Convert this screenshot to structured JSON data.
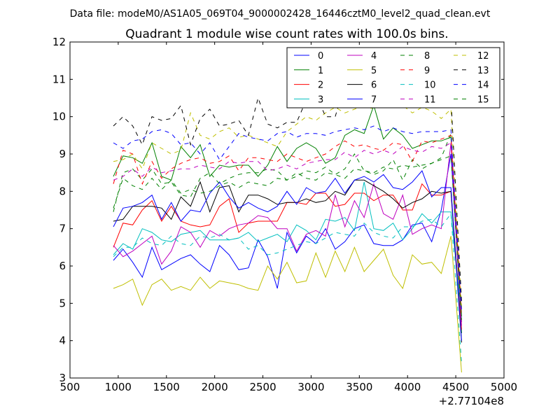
{
  "suptitle": "Data file: modeM0/AS1A05_069T04_9000002428_16446cztM0_level2_quad_clean.evt",
  "chart_data": {
    "type": "line",
    "title": "Quadrant 1 module wise count rates with 100.0s bins.",
    "xlabel": "",
    "ylabel": "",
    "x_offset_label": "+2.77104e8",
    "xlim": [
      500,
      5000
    ],
    "ylim": [
      3,
      12
    ],
    "xticks": [
      500,
      1000,
      1500,
      2000,
      2500,
      3000,
      3500,
      4000,
      4500,
      5000
    ],
    "yticks": [
      3,
      4,
      5,
      6,
      7,
      8,
      9,
      10,
      11,
      12
    ],
    "x": [
      950,
      1050,
      1150,
      1250,
      1350,
      1450,
      1550,
      1650,
      1750,
      1850,
      1950,
      2050,
      2150,
      2250,
      2350,
      2450,
      2550,
      2650,
      2750,
      2850,
      2950,
      3050,
      3150,
      3250,
      3350,
      3450,
      3550,
      3650,
      3750,
      3850,
      3950,
      4050,
      4150,
      4250,
      4350,
      4450,
      4560
    ],
    "legend": {
      "placement": "top-right",
      "columns": 4
    },
    "series": [
      {
        "name": "0",
        "color": "#0000ff",
        "dash": "solid",
        "values": [
          6.15,
          6.45,
          6.1,
          5.7,
          6.5,
          5.9,
          6.05,
          6.2,
          6.3,
          6.05,
          5.85,
          6.55,
          6.3,
          5.9,
          5.95,
          6.7,
          6.25,
          5.4,
          6.9,
          6.35,
          6.8,
          6.6,
          7.0,
          6.45,
          6.65,
          7.0,
          7.1,
          6.6,
          6.55,
          6.55,
          6.7,
          7.1,
          7.15,
          6.65,
          7.5,
          9.0,
          4.5
        ]
      },
      {
        "name": "1",
        "color": "#008000",
        "dash": "solid",
        "values": [
          8.4,
          8.95,
          8.9,
          8.75,
          9.3,
          8.4,
          8.3,
          9.2,
          8.9,
          9.25,
          8.4,
          8.7,
          8.65,
          8.7,
          8.7,
          8.4,
          8.7,
          9.2,
          8.8,
          9.15,
          9.3,
          9.15,
          8.75,
          8.9,
          9.5,
          9.65,
          9.55,
          10.3,
          9.4,
          9.7,
          9.5,
          9.15,
          9.25,
          9.35,
          9.35,
          9.45,
          4.2
        ]
      },
      {
        "name": "2",
        "color": "#ff0000",
        "dash": "solid",
        "values": [
          6.5,
          7.15,
          7.1,
          7.5,
          7.75,
          7.2,
          7.6,
          7.2,
          7.1,
          7.05,
          7.1,
          7.6,
          7.8,
          6.9,
          7.15,
          7.2,
          7.2,
          7.2,
          7.7,
          7.7,
          7.65,
          7.95,
          7.95,
          7.6,
          7.65,
          7.95,
          7.95,
          7.75,
          7.9,
          7.9,
          7.5,
          7.5,
          8.2,
          7.9,
          7.9,
          8.0,
          4.3
        ]
      },
      {
        "name": "3",
        "color": "#00bfbf",
        "dash": "solid",
        "values": [
          6.3,
          6.6,
          6.45,
          7.0,
          6.9,
          6.7,
          6.65,
          6.85,
          6.9,
          6.95,
          6.7,
          6.7,
          6.7,
          6.75,
          6.9,
          6.65,
          6.75,
          6.85,
          6.65,
          7.1,
          6.95,
          6.7,
          7.25,
          7.2,
          7.3,
          6.95,
          8.25,
          7.0,
          6.95,
          7.15,
          6.7,
          7.0,
          7.4,
          7.15,
          7.45,
          7.45,
          4.6
        ]
      },
      {
        "name": "4",
        "color": "#bf00bf",
        "dash": "solid",
        "values": [
          6.55,
          6.25,
          6.4,
          6.6,
          6.8,
          6.05,
          6.4,
          7.05,
          6.9,
          6.5,
          6.95,
          6.8,
          7.0,
          7.1,
          7.15,
          7.35,
          7.3,
          7.0,
          7.0,
          6.4,
          6.85,
          6.95,
          6.8,
          7.9,
          7.05,
          7.75,
          7.3,
          8.2,
          7.4,
          7.25,
          7.9,
          6.85,
          7.0,
          7.1,
          7.0,
          9.3,
          4.4
        ]
      },
      {
        "name": "5",
        "color": "#bfbf00",
        "dash": "solid",
        "values": [
          5.4,
          5.5,
          5.65,
          4.95,
          5.5,
          5.65,
          5.35,
          5.45,
          5.35,
          5.7,
          5.4,
          5.6,
          5.55,
          5.5,
          5.4,
          5.35,
          6.0,
          5.65,
          6.1,
          5.55,
          5.6,
          6.35,
          5.7,
          6.4,
          5.85,
          6.5,
          5.85,
          6.15,
          6.45,
          5.75,
          5.4,
          6.3,
          6.05,
          6.1,
          5.8,
          6.8,
          3.15
        ]
      },
      {
        "name": "6",
        "color": "#000000",
        "dash": "solid",
        "values": [
          7.2,
          7.25,
          7.6,
          7.6,
          7.6,
          7.55,
          7.25,
          7.85,
          7.6,
          8.25,
          7.45,
          8.1,
          8.15,
          7.45,
          7.9,
          7.9,
          7.8,
          7.65,
          7.7,
          7.7,
          7.8,
          7.7,
          7.75,
          8.0,
          7.9,
          8.3,
          8.3,
          8.15,
          8.0,
          7.8,
          7.55,
          7.7,
          7.8,
          8.0,
          7.95,
          8.0,
          3.95
        ]
      },
      {
        "name": "7",
        "color": "#0000ff",
        "dash": "solid",
        "values": [
          7.05,
          7.55,
          7.6,
          7.7,
          7.9,
          7.25,
          7.7,
          7.2,
          7.5,
          7.45,
          7.95,
          8.25,
          7.85,
          7.55,
          7.7,
          7.55,
          7.45,
          7.6,
          8.0,
          7.65,
          8.1,
          7.95,
          8.0,
          8.35,
          7.95,
          8.3,
          8.4,
          8.25,
          8.45,
          8.1,
          8.05,
          8.25,
          8.55,
          7.85,
          8.1,
          8.1,
          4.0
        ]
      },
      {
        "name": "8",
        "color": "#008000",
        "dash": "dashed",
        "values": [
          7.45,
          8.5,
          8.6,
          8.3,
          8.6,
          8.2,
          8.25,
          7.9,
          7.85,
          8.35,
          8.5,
          8.2,
          8.35,
          8.45,
          8.5,
          8.5,
          8.6,
          8.55,
          8.3,
          8.4,
          8.55,
          8.5,
          8.65,
          8.45,
          8.6,
          9.0,
          8.55,
          8.45,
          8.55,
          8.85,
          8.3,
          8.85,
          8.6,
          8.75,
          8.9,
          9.55,
          4.65
        ]
      },
      {
        "name": "9",
        "color": "#ff0000",
        "dash": "dashed",
        "values": [
          8.2,
          9.1,
          9.0,
          8.2,
          8.8,
          8.35,
          8.6,
          8.75,
          8.85,
          8.9,
          8.75,
          8.8,
          8.95,
          8.55,
          8.9,
          8.9,
          8.85,
          8.8,
          9.0,
          8.9,
          8.8,
          8.9,
          9.0,
          9.2,
          9.35,
          9.2,
          9.25,
          9.15,
          9.1,
          9.3,
          9.25,
          8.8,
          9.35,
          9.3,
          9.4,
          9.5,
          4.7
        ]
      },
      {
        "name": "10",
        "color": "#00bfbf",
        "dash": "dashed",
        "values": [
          6.25,
          6.5,
          6.5,
          6.75,
          6.6,
          6.55,
          6.8,
          6.6,
          6.55,
          6.8,
          6.75,
          6.85,
          6.7,
          6.75,
          6.45,
          6.55,
          6.3,
          6.35,
          6.45,
          6.55,
          6.65,
          6.6,
          6.75,
          6.9,
          6.85,
          6.8,
          7.15,
          6.9,
          6.8,
          6.75,
          7.05,
          7.05,
          7.2,
          7.25,
          7.05,
          7.4,
          3.4
        ]
      },
      {
        "name": "11",
        "color": "#bf00bf",
        "dash": "dashed",
        "values": [
          8.3,
          8.4,
          8.6,
          8.4,
          8.65,
          8.5,
          8.55,
          8.6,
          8.6,
          8.7,
          8.65,
          8.6,
          8.8,
          8.75,
          8.8,
          8.8,
          8.55,
          8.6,
          8.7,
          8.6,
          8.75,
          8.8,
          8.85,
          8.85,
          9.05,
          8.9,
          9.1,
          9.0,
          9.1,
          9.0,
          9.2,
          9.1,
          9.05,
          9.2,
          9.15,
          9.3,
          4.85
        ]
      },
      {
        "name": "12",
        "color": "#bfbf00",
        "dash": "dashed",
        "values": [
          8.8,
          8.85,
          9.0,
          8.6,
          9.3,
          9.15,
          9.0,
          9.1,
          10.1,
          9.5,
          9.4,
          9.6,
          9.7,
          9.45,
          9.5,
          9.4,
          9.3,
          9.2,
          9.6,
          9.8,
          10.0,
          9.9,
          10.1,
          10.25,
          10.1,
          10.2,
          10.3,
          10.2,
          10.45,
          10.3,
          10.3,
          10.1,
          10.25,
          10.15,
          9.95,
          10.2,
          4.9
        ]
      },
      {
        "name": "13",
        "color": "#000000",
        "dash": "dashed",
        "values": [
          9.75,
          10.0,
          9.75,
          9.25,
          10.0,
          9.9,
          9.95,
          10.3,
          9.25,
          9.95,
          10.2,
          9.75,
          9.8,
          9.9,
          9.5,
          10.5,
          9.8,
          9.7,
          9.85,
          9.85,
          10.45,
          10.6,
          10.0,
          10.0,
          10.9,
          10.85,
          10.6,
          10.45,
          10.7,
          10.35,
          10.3,
          10.6,
          10.2,
          10.55,
          10.4,
          10.5,
          5.05
        ]
      },
      {
        "name": "14",
        "color": "#0000ff",
        "dash": "dashed",
        "values": [
          9.3,
          9.15,
          9.35,
          9.4,
          9.6,
          9.65,
          9.55,
          9.25,
          9.3,
          9.0,
          9.3,
          8.85,
          9.2,
          9.55,
          9.45,
          9.4,
          9.35,
          9.55,
          9.6,
          9.45,
          9.55,
          9.55,
          9.5,
          9.6,
          9.65,
          9.7,
          9.65,
          9.75,
          9.6,
          9.7,
          9.6,
          9.55,
          9.6,
          9.6,
          9.6,
          9.65,
          4.75
        ]
      },
      {
        "name": "15",
        "color": "#008000",
        "dash": "dashed",
        "values": [
          7.55,
          8.35,
          8.15,
          8.05,
          8.35,
          8.05,
          8.3,
          7.95,
          8.05,
          7.95,
          8.0,
          8.15,
          8.25,
          8.1,
          8.25,
          8.2,
          8.15,
          8.35,
          8.3,
          8.5,
          8.35,
          8.3,
          8.5,
          8.45,
          8.35,
          8.6,
          8.55,
          8.5,
          8.65,
          8.6,
          8.7,
          8.65,
          8.7,
          8.75,
          8.85,
          8.95,
          4.55
        ]
      }
    ]
  }
}
